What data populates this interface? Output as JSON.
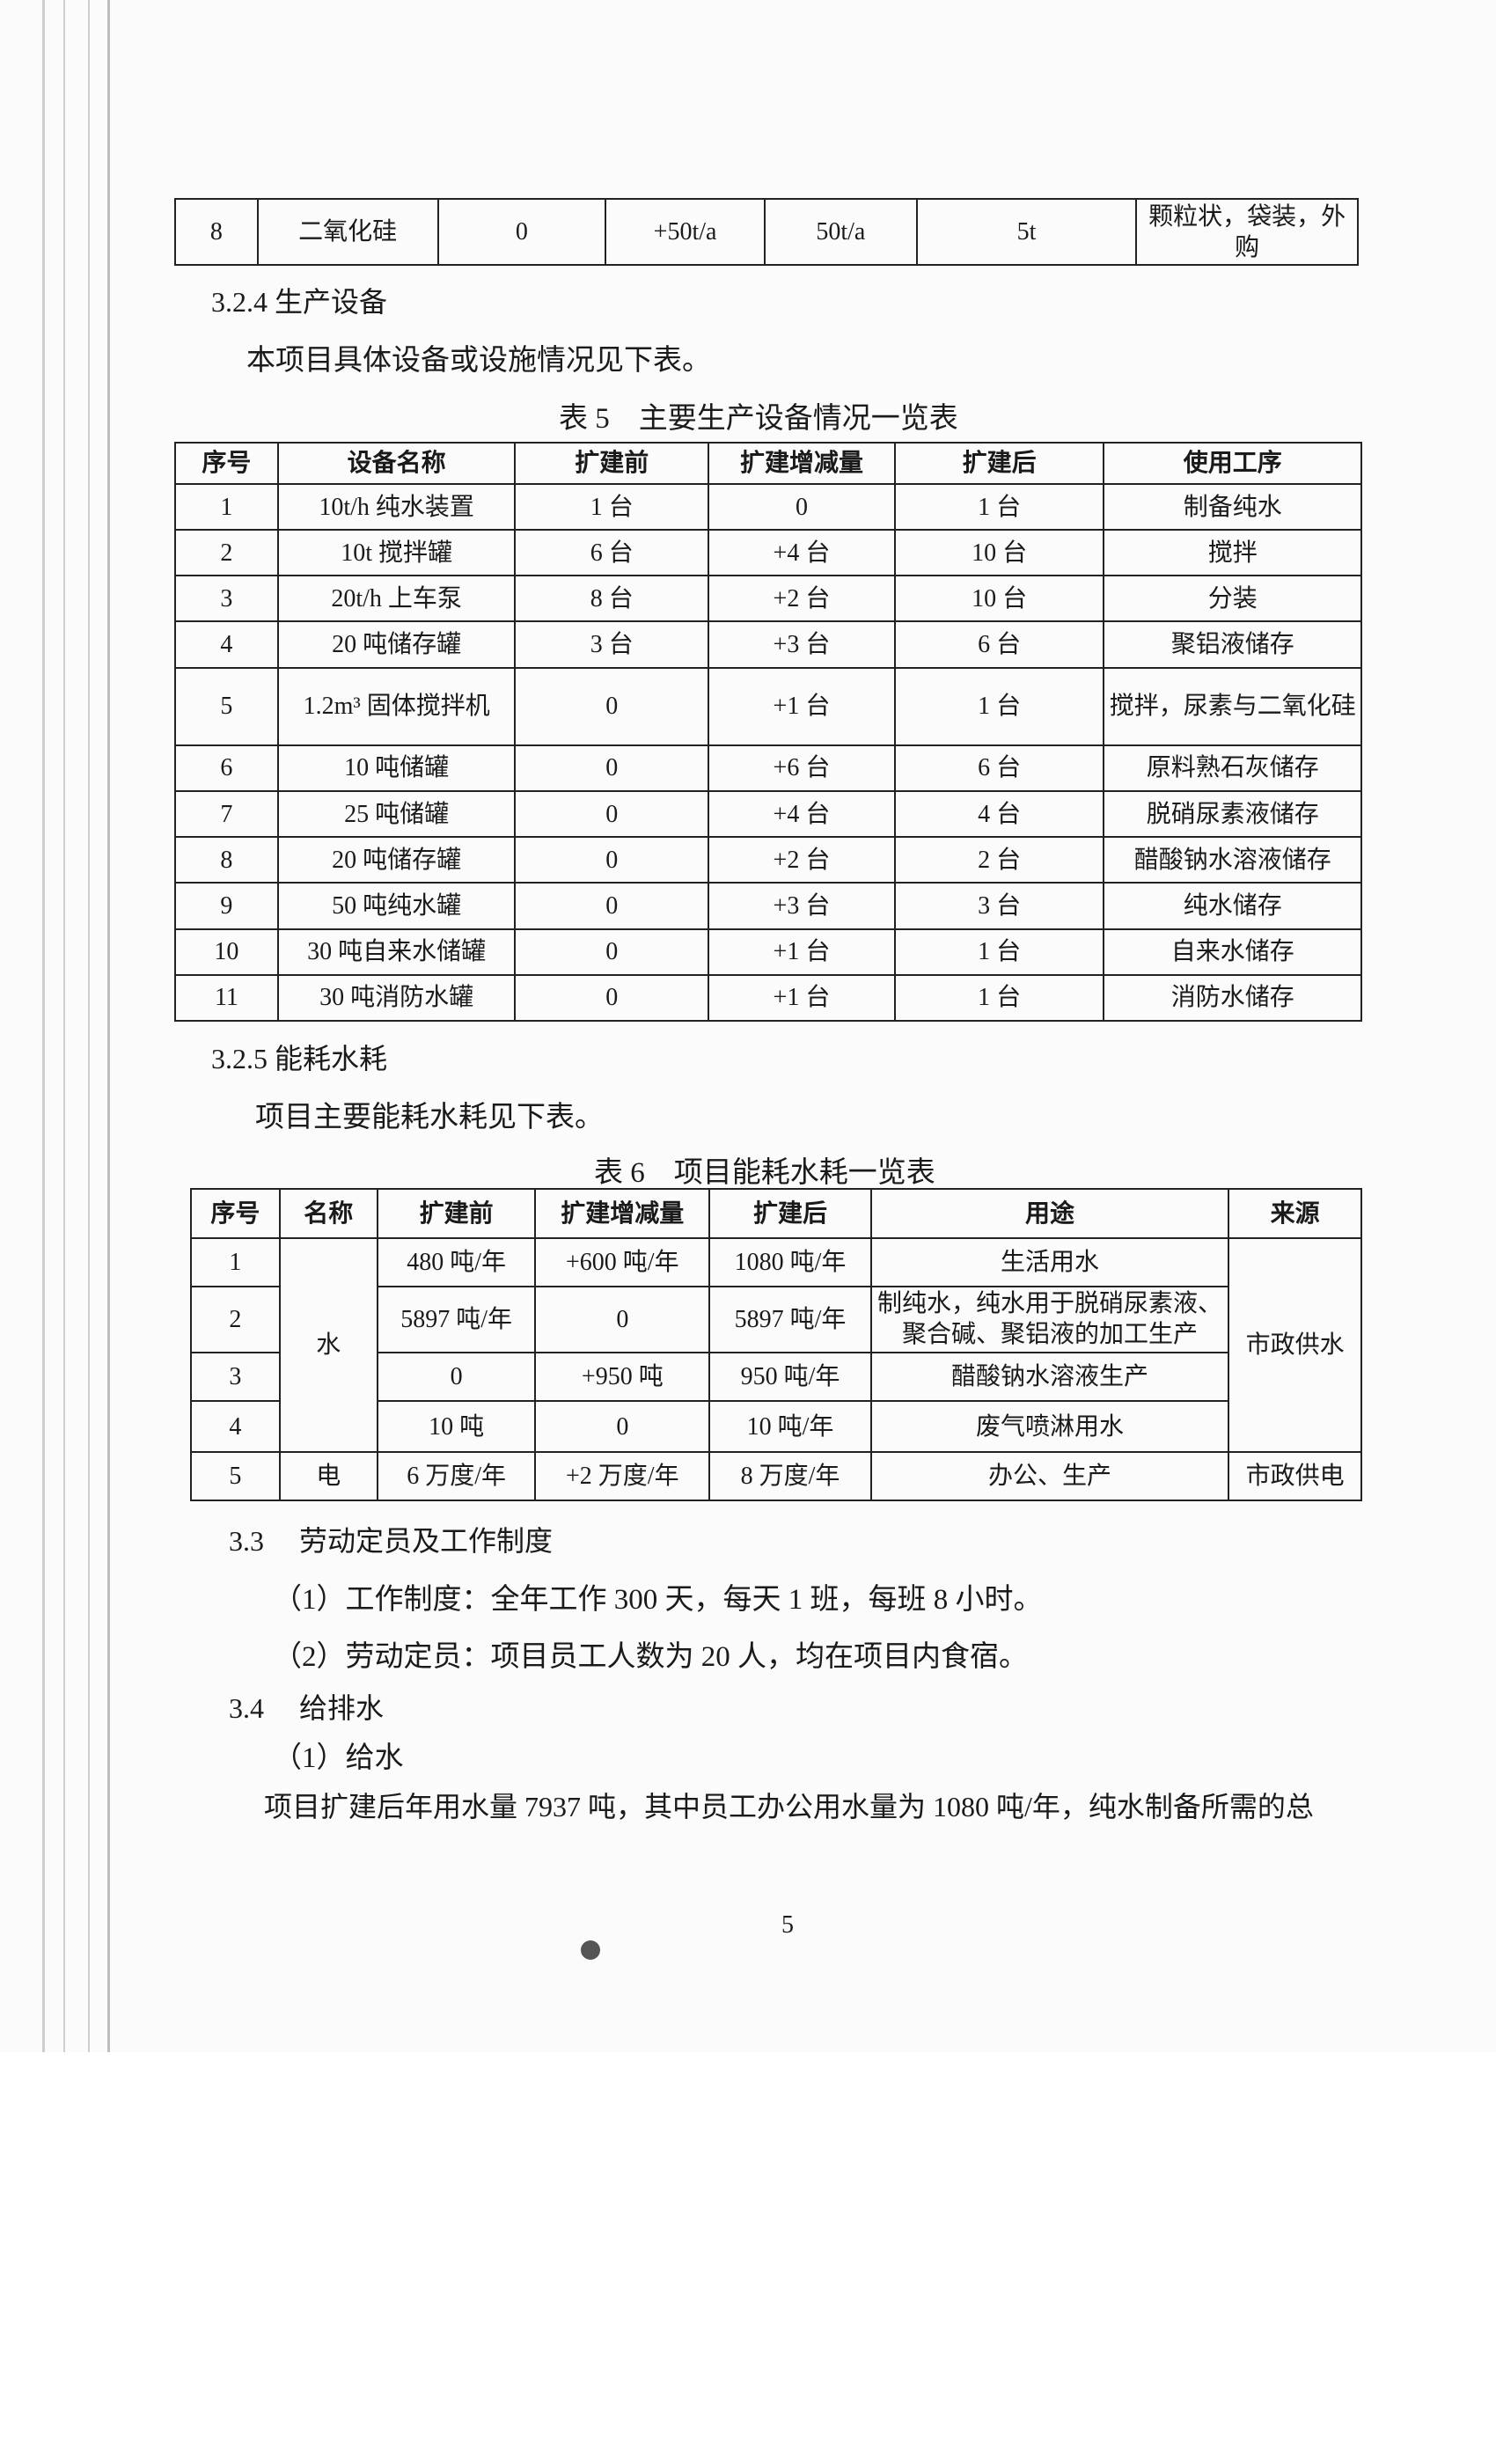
{
  "table_prev": {
    "row": [
      "8",
      "二氧化硅",
      "0",
      "+50t/a",
      "50t/a",
      "5t",
      "颗粒状，袋装，外购"
    ]
  },
  "section_324": {
    "heading": "3.2.4  生产设备",
    "intro": "本项目具体设备或设施情况见下表。"
  },
  "table5": {
    "caption": "表 5　主要生产设备情况一览表",
    "headers": [
      "序号",
      "设备名称",
      "扩建前",
      "扩建增减量",
      "扩建后",
      "使用工序"
    ],
    "rows": [
      [
        "1",
        "10t/h 纯水装置",
        "1 台",
        "0",
        "1 台",
        "制备纯水"
      ],
      [
        "2",
        "10t 搅拌罐",
        "6 台",
        "+4 台",
        "10 台",
        "搅拌"
      ],
      [
        "3",
        "20t/h 上车泵",
        "8 台",
        "+2 台",
        "10 台",
        "分装"
      ],
      [
        "4",
        "20 吨储存罐",
        "3 台",
        "+3 台",
        "6 台",
        "聚铝液储存"
      ],
      [
        "5",
        "1.2m³ 固体搅拌机",
        "0",
        "+1 台",
        "1 台",
        "搅拌，尿素与二氧化硅"
      ],
      [
        "6",
        "10 吨储罐",
        "0",
        "+6 台",
        "6 台",
        "原料熟石灰储存"
      ],
      [
        "7",
        "25 吨储罐",
        "0",
        "+4 台",
        "4 台",
        "脱硝尿素液储存"
      ],
      [
        "8",
        "20 吨储存罐",
        "0",
        "+2 台",
        "2 台",
        "醋酸钠水溶液储存"
      ],
      [
        "9",
        "50 吨纯水罐",
        "0",
        "+3 台",
        "3 台",
        "纯水储存"
      ],
      [
        "10",
        "30 吨自来水储罐",
        "0",
        "+1 台",
        "1 台",
        "自来水储存"
      ],
      [
        "11",
        "30 吨消防水罐",
        "0",
        "+1 台",
        "1 台",
        "消防水储存"
      ]
    ]
  },
  "section_325": {
    "heading": "3.2.5  能耗水耗",
    "intro": "项目主要能耗水耗见下表。"
  },
  "table6": {
    "caption": "表 6　项目能耗水耗一览表",
    "headers": [
      "序号",
      "名称",
      "扩建前",
      "扩建增减量",
      "扩建后",
      "用途",
      "来源"
    ],
    "water_name": "水",
    "water_source": "市政供水",
    "water_rows": [
      [
        "1",
        "480 吨/年",
        "+600 吨/年",
        "1080 吨/年",
        "生活用水"
      ],
      [
        "2",
        "5897 吨/年",
        "0",
        "5897 吨/年",
        "制纯水，纯水用于脱硝尿素液、聚合碱、聚铝液的加工生产"
      ],
      [
        "3",
        "0",
        "+950 吨",
        "950 吨/年",
        "醋酸钠水溶液生产"
      ],
      [
        "4",
        "10 吨",
        "0",
        "10 吨/年",
        "废气喷淋用水"
      ]
    ],
    "power_row": [
      "5",
      "电",
      "6 万度/年",
      "+2 万度/年",
      "8 万度/年",
      "办公、生产",
      "市政供电"
    ]
  },
  "section_33": {
    "heading": "3.3　 劳动定员及工作制度",
    "item1": "（1）工作制度：全年工作 300 天，每天 1 班，每班 8 小时。",
    "item2": "（2）劳动定员：项目员工人数为 20 人，均在项目内食宿。"
  },
  "section_34": {
    "heading": "3.4　 给排水",
    "sub1": "（1）给水",
    "para": "项目扩建后年用水量 7937 吨，其中员工办公用水量为 1080 吨/年，纯水制备所需的总"
  },
  "page_number": "5"
}
